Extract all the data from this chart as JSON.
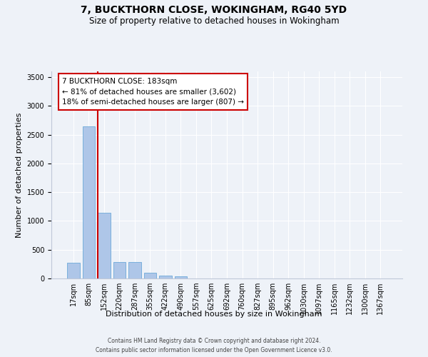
{
  "title": "7, BUCKTHORN CLOSE, WOKINGHAM, RG40 5YD",
  "subtitle": "Size of property relative to detached houses in Wokingham",
  "xlabel": "Distribution of detached houses by size in Wokingham",
  "ylabel": "Number of detached properties",
  "bar_labels": [
    "17sqm",
    "85sqm",
    "152sqm",
    "220sqm",
    "287sqm",
    "355sqm",
    "422sqm",
    "490sqm",
    "557sqm",
    "625sqm",
    "692sqm",
    "760sqm",
    "827sqm",
    "895sqm",
    "962sqm",
    "1030sqm",
    "1097sqm",
    "1165sqm",
    "1232sqm",
    "1300sqm",
    "1367sqm"
  ],
  "bar_values": [
    270,
    2640,
    1140,
    290,
    285,
    95,
    55,
    40,
    0,
    0,
    0,
    0,
    0,
    0,
    0,
    0,
    0,
    0,
    0,
    0,
    0
  ],
  "bar_color": "#aec6e8",
  "bar_edge_color": "#5a9fd4",
  "property_line_x": 1.6,
  "property_line_label": "7 BUCKTHORN CLOSE: 183sqm",
  "annotation_line1": "← 81% of detached houses are smaller (3,602)",
  "annotation_line2": "18% of semi-detached houses are larger (807) →",
  "annotation_box_color": "#ffffff",
  "annotation_box_edge": "#cc0000",
  "vline_color": "#cc0000",
  "ylim": [
    0,
    3600
  ],
  "background_color": "#eef2f8",
  "grid_color": "#ffffff",
  "footer": "Contains HM Land Registry data © Crown copyright and database right 2024.\nContains public sector information licensed under the Open Government Licence v3.0.",
  "title_fontsize": 10,
  "subtitle_fontsize": 8.5,
  "ylabel_fontsize": 8,
  "xlabel_fontsize": 8,
  "tick_fontsize": 7,
  "ann_fontsize": 7.5
}
